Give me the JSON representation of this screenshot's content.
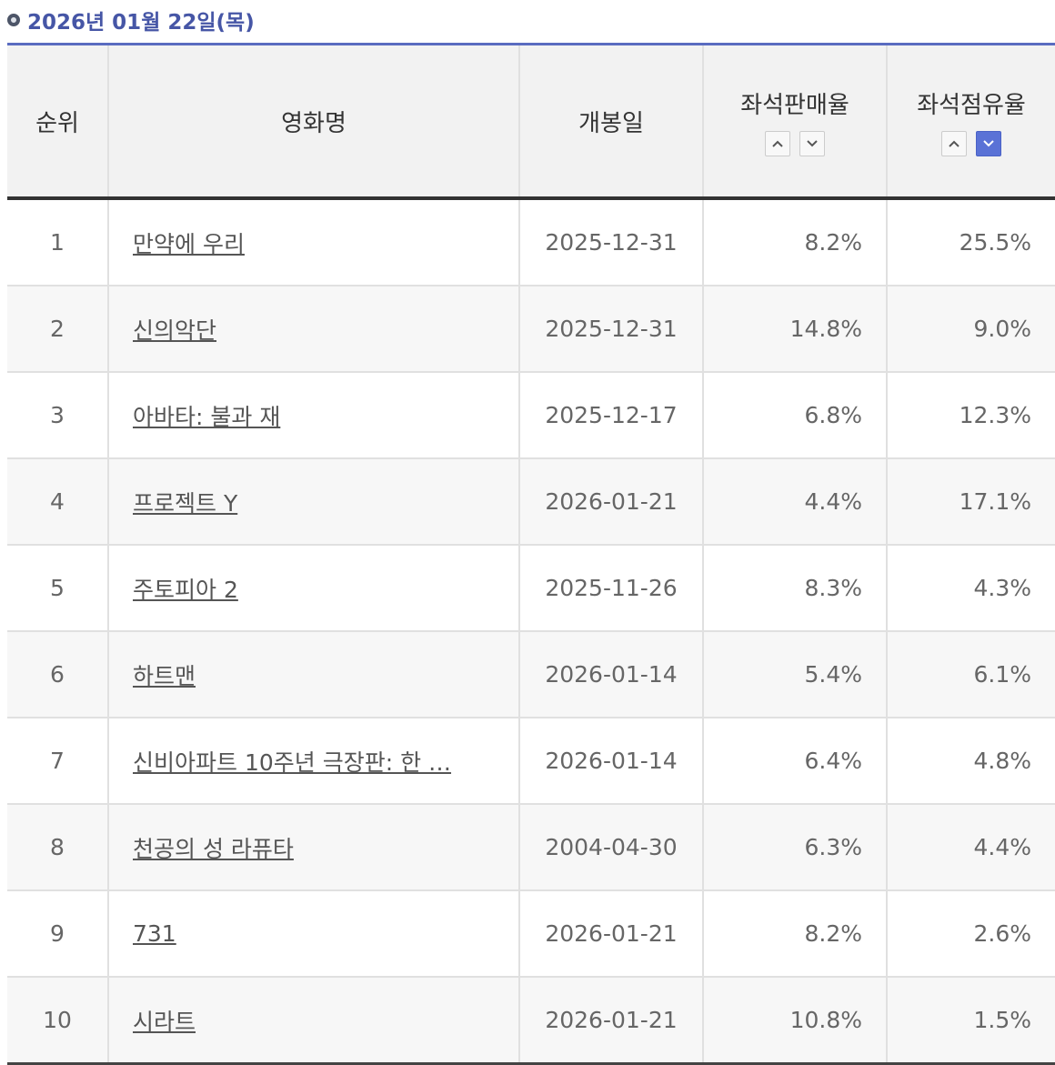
{
  "header": {
    "date": "2026년 01월 22일(목)"
  },
  "table": {
    "columns": [
      "순위",
      "영화명",
      "개봉일",
      "좌석판매율",
      "좌석점유율"
    ],
    "rows": [
      [
        "1",
        "만약에 우리",
        "2025-12-31",
        "8.2%",
        "25.5%"
      ],
      [
        "2",
        "신의악단",
        "2025-12-31",
        "14.8%",
        "9.0%"
      ],
      [
        "3",
        "아바타: 불과 재",
        "2025-12-17",
        "6.8%",
        "12.3%"
      ],
      [
        "4",
        "프로젝트 Y",
        "2026-01-21",
        "4.4%",
        "17.1%"
      ],
      [
        "5",
        "주토피아 2",
        "2025-11-26",
        "8.3%",
        "4.3%"
      ],
      [
        "6",
        "하트맨",
        "2026-01-14",
        "5.4%",
        "6.1%"
      ],
      [
        "7",
        "신비아파트 10주년 극장판: 한 …",
        "2026-01-14",
        "6.4%",
        "4.8%"
      ],
      [
        "8",
        "천공의 성 라퓨타",
        "2004-04-30",
        "6.3%",
        "4.4%"
      ],
      [
        "9",
        "731",
        "2026-01-21",
        "8.2%",
        "2.6%"
      ],
      [
        "10",
        "시라트",
        "2026-01-21",
        "10.8%",
        "1.5%"
      ]
    ]
  }
}
